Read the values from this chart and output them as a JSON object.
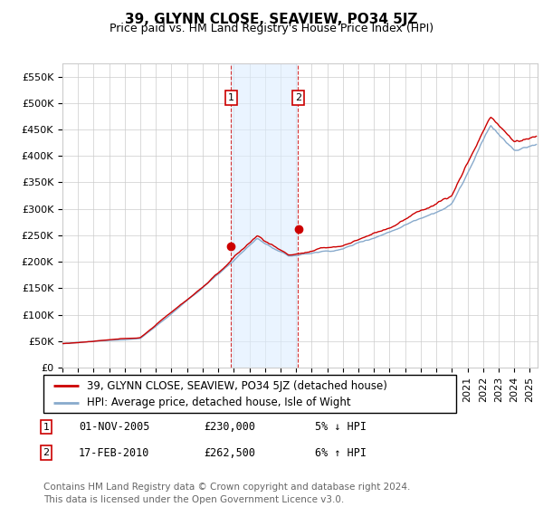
{
  "title": "39, GLYNN CLOSE, SEAVIEW, PO34 5JZ",
  "subtitle": "Price paid vs. HM Land Registry's House Price Index (HPI)",
  "ylabel_ticks": [
    "£0",
    "£50K",
    "£100K",
    "£150K",
    "£200K",
    "£250K",
    "£300K",
    "£350K",
    "£400K",
    "£450K",
    "£500K",
    "£550K"
  ],
  "ytick_values": [
    0,
    50000,
    100000,
    150000,
    200000,
    250000,
    300000,
    350000,
    400000,
    450000,
    500000,
    550000
  ],
  "ylim": [
    0,
    575000
  ],
  "xlim_start": 1995.0,
  "xlim_end": 2025.5,
  "purchase1_date": 2005.833,
  "purchase1_price": 230000,
  "purchase2_date": 2010.125,
  "purchase2_price": 262500,
  "shade_color": "#ddeeff",
  "shade_alpha": 0.6,
  "grid_color": "#cccccc",
  "background_color": "#ffffff",
  "line1_color": "#cc0000",
  "line2_color": "#88aacc",
  "legend_label1": "39, GLYNN CLOSE, SEAVIEW, PO34 5JZ (detached house)",
  "legend_label2": "HPI: Average price, detached house, Isle of Wight",
  "annotation1_date": "01-NOV-2005",
  "annotation1_price": "£230,000",
  "annotation1_hpi": "5% ↓ HPI",
  "annotation2_date": "17-FEB-2010",
  "annotation2_price": "£262,500",
  "annotation2_hpi": "6% ↑ HPI",
  "footer": "Contains HM Land Registry data © Crown copyright and database right 2024.\nThis data is licensed under the Open Government Licence v3.0.",
  "title_fontsize": 11,
  "subtitle_fontsize": 9,
  "tick_fontsize": 8,
  "legend_fontsize": 8.5,
  "annotation_fontsize": 8.5,
  "footer_fontsize": 7.5
}
